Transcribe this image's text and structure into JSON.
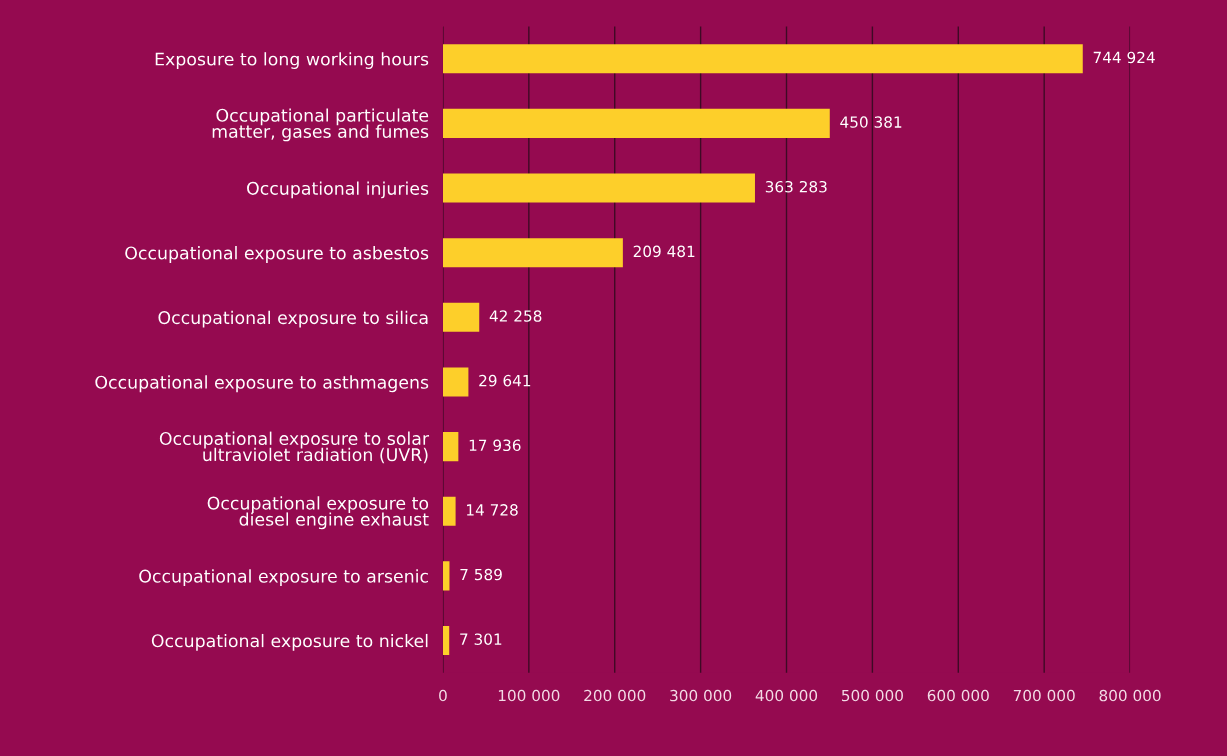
{
  "chart_data": {
    "type": "bar",
    "orientation": "horizontal",
    "categories": [
      "Exposure to long working hours",
      "Occupational particulate\nmatter, gases and fumes",
      "Occupational injuries",
      "Occupational exposure to asbestos",
      "Occupational exposure to silica",
      "Occupational exposure to asthmagens",
      "Occupational exposure to solar\nultraviolet radiation (UVR)",
      "Occupational exposure to\ndiesel engine exhaust",
      "Occupational exposure to arsenic",
      "Occupational exposure to nickel"
    ],
    "values": [
      744924,
      450381,
      363283,
      209481,
      42258,
      29641,
      17936,
      14728,
      7589,
      7301
    ],
    "value_labels": [
      "744 924",
      "450 381",
      "363 283",
      "209 481",
      "42 258",
      "29 641",
      "17 936",
      "14 728",
      "7 589",
      "7 301"
    ],
    "color": "#fdcf2a",
    "xlim": [
      0,
      800000
    ],
    "xticks": [
      0,
      {
        "value": 100000,
        "label": "100 000"
      },
      {
        "value": 200000,
        "label": "200 000"
      },
      {
        "value": 300000,
        "label": "300 000"
      },
      {
        "value": 400000,
        "label": "400 000"
      },
      {
        "value": 500000,
        "label": "500 000"
      },
      {
        "value": 600000,
        "label": "600 000"
      },
      {
        "value": 700000,
        "label": "700 000"
      },
      {
        "value": 800000,
        "label": "800 000"
      }
    ],
    "grid": "x",
    "legend": false
  }
}
